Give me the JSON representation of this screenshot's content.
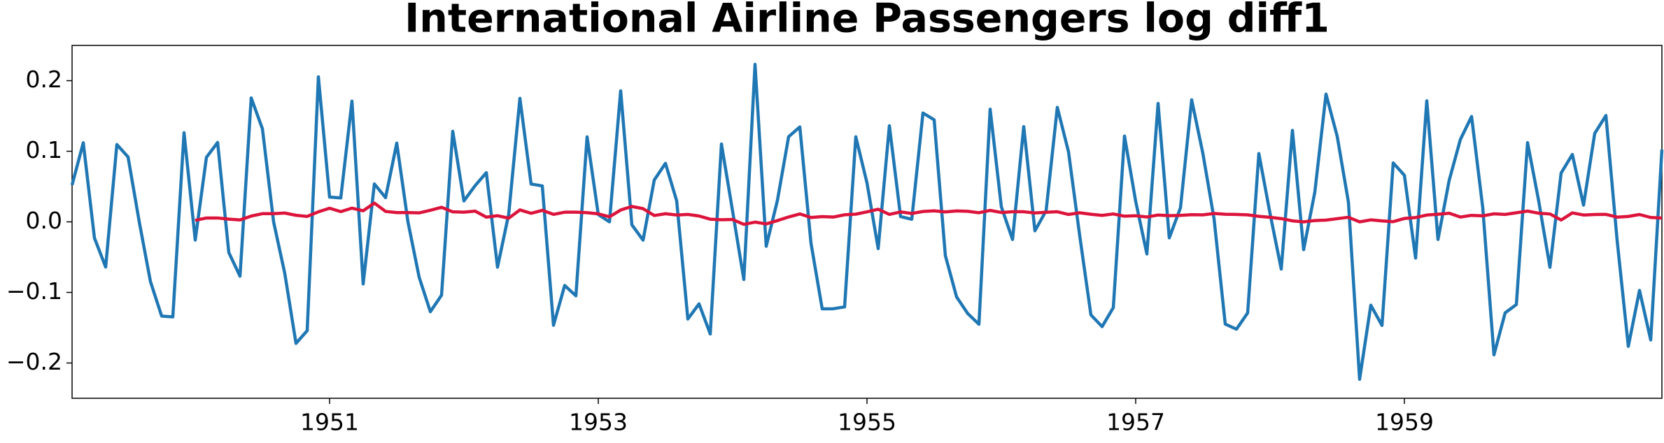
{
  "chart_data": {
    "type": "line",
    "title": "International Airline Passengers log diff1",
    "x": [
      "1949-02",
      "1949-03",
      "1949-04",
      "1949-05",
      "1949-06",
      "1949-07",
      "1949-08",
      "1949-09",
      "1949-10",
      "1949-11",
      "1949-12",
      "1950-01",
      "1950-02",
      "1950-03",
      "1950-04",
      "1950-05",
      "1950-06",
      "1950-07",
      "1950-08",
      "1950-09",
      "1950-10",
      "1950-11",
      "1950-12",
      "1951-01",
      "1951-02",
      "1951-03",
      "1951-04",
      "1951-05",
      "1951-06",
      "1951-07",
      "1951-08",
      "1951-09",
      "1951-10",
      "1951-11",
      "1951-12",
      "1952-01",
      "1952-02",
      "1952-03",
      "1952-04",
      "1952-05",
      "1952-06",
      "1952-07",
      "1952-08",
      "1952-09",
      "1952-10",
      "1952-11",
      "1952-12",
      "1953-01",
      "1953-02",
      "1953-03",
      "1953-04",
      "1953-05",
      "1953-06",
      "1953-07",
      "1953-08",
      "1953-09",
      "1953-10",
      "1953-11",
      "1953-12",
      "1954-01",
      "1954-02",
      "1954-03",
      "1954-04",
      "1954-05",
      "1954-06",
      "1954-07",
      "1954-08",
      "1954-09",
      "1954-10",
      "1954-11",
      "1954-12",
      "1955-01",
      "1955-02",
      "1955-03",
      "1955-04",
      "1955-05",
      "1955-06",
      "1955-07",
      "1955-08",
      "1955-09",
      "1955-10",
      "1955-11",
      "1955-12",
      "1956-01",
      "1956-02",
      "1956-03",
      "1956-04",
      "1956-05",
      "1956-06",
      "1956-07",
      "1956-08",
      "1956-09",
      "1956-10",
      "1956-11",
      "1956-12",
      "1957-01",
      "1957-02",
      "1957-03",
      "1957-04",
      "1957-05",
      "1957-06",
      "1957-07",
      "1957-08",
      "1957-09",
      "1957-10",
      "1957-11",
      "1957-12",
      "1958-01",
      "1958-02",
      "1958-03",
      "1958-04",
      "1958-05",
      "1958-06",
      "1958-07",
      "1958-08",
      "1958-09",
      "1958-10",
      "1958-11",
      "1958-12",
      "1959-01",
      "1959-02",
      "1959-03",
      "1959-04",
      "1959-05",
      "1959-06",
      "1959-07",
      "1959-08",
      "1959-09",
      "1959-10",
      "1959-11",
      "1959-12",
      "1960-01",
      "1960-02",
      "1960-03",
      "1960-04",
      "1960-05",
      "1960-06",
      "1960-07",
      "1960-08",
      "1960-09",
      "1960-10",
      "1960-11",
      "1960-12"
    ],
    "series": [
      {
        "color": "#1f77b4",
        "values": [
          0.0522,
          0.1121,
          -0.023,
          -0.064,
          0.1095,
          0.0919,
          0,
          -0.0846,
          -0.1335,
          -0.1347,
          0.1263,
          -0.0258,
          0.0914,
          0.1125,
          -0.0435,
          -0.077,
          0.1756,
          0.1319,
          0,
          -0.0732,
          -0.1722,
          -0.1542,
          0.2054,
          0.0351,
          0.0339,
          0.1711,
          -0.088,
          0.0537,
          0.0343,
          0.1115,
          0,
          -0.0784,
          -0.1273,
          -0.104,
          0.1284,
          0.0297,
          0.0513,
          0.0697,
          -0.0642,
          0.011,
          0.175,
          0.0536,
          0.0509,
          -0.1466,
          -0.0901,
          -0.1048,
          0.1204,
          0.0103,
          0,
          0.1857,
          -0.0042,
          -0.0259,
          0.0593,
          0.0829,
          0.0299,
          -0.1377,
          -0.1162,
          -0.1589,
          0.1103,
          0.0148,
          -0.0817,
          0.2231,
          -0.0346,
          0.0304,
          0.1206,
          0.1345,
          -0.0303,
          -0.1233,
          -0.1231,
          -0.1205,
          0.1205,
          0.0552,
          -0.0379,
          0.1362,
          0.0075,
          0.0037,
          0.1542,
          0.1446,
          -0.0478,
          -0.1063,
          -0.1299,
          -0.1451,
          0.1596,
          0.0214,
          -0.025,
          0.1349,
          -0.0127,
          0.0158,
          0.1622,
          0.0992,
          -0.0196,
          -0.1318,
          -0.1485,
          -0.1215,
          0.1215,
          0.029,
          -0.0455,
          0.1678,
          -0.0227,
          0.0199,
          0.1729,
          0.097,
          0.0043,
          -0.1449,
          -0.1521,
          -0.129,
          0.0968,
          0.0118,
          -0.0669,
          0.1296,
          -0.0394,
          0.0422,
          0.181,
          0.1211,
          0.0281,
          -0.2231,
          -0.1181,
          -0.1468,
          0.0835,
          0.066,
          -0.0513,
          0.1715,
          -0.0249,
          0.0588,
          0.1167,
          0.1493,
          0.0199,
          -0.1884,
          -0.1289,
          -0.1172,
          0.1122,
          0.0292,
          -0.0644,
          0.0692,
          0.0955,
          0.0236,
          0.1253,
          0.1507,
          -0.0261,
          -0.1764,
          -0.0971,
          -0.1673,
          0.1023
        ]
      },
      {
        "color": "#dc143c",
        "values": [
          null,
          null,
          null,
          null,
          null,
          null,
          null,
          null,
          null,
          null,
          null,
          0.0022,
          0.0055,
          0.0055,
          0.0038,
          0.0027,
          0.0082,
          0.0116,
          0.0116,
          0.0125,
          0.0093,
          0.0077,
          0.0142,
          0.0193,
          0.0145,
          0.0194,
          0.0157,
          0.0266,
          0.0148,
          0.0131,
          0.0131,
          0.0127,
          0.0164,
          0.0206,
          0.0142,
          0.0137,
          0.0152,
          0.0067,
          0.0087,
          0.0052,
          0.0169,
          0.0121,
          0.0163,
          0.0106,
          0.0137,
          0.0137,
          0.013,
          0.0114,
          0.0071,
          0.0168,
          0.0218,
          0.0187,
          0.009,
          0.0115,
          0.0097,
          0.0105,
          0.0083,
          0.0038,
          0.003,
          0.0033,
          -0.0035,
          -0.0004,
          -0.0029,
          0.0018,
          0.0069,
          0.0112,
          0.0062,
          0.0074,
          0.0068,
          0.01,
          0.0109,
          0.0142,
          0.0179,
          0.0106,
          0.0141,
          0.0119,
          0.0147,
          0.0156,
          0.0141,
          0.0155,
          0.015,
          0.0129,
          0.0162,
          0.0133,
          0.0144,
          0.0143,
          0.0126,
          0.0136,
          0.0143,
          0.0105,
          0.0129,
          0.0108,
          0.0092,
          0.0112,
          0.008,
          0.0086,
          0.0069,
          0.0097,
          0.0088,
          0.0092,
          0.0101,
          0.0099,
          0.0119,
          0.0108,
          0.0105,
          0.0099,
          0.0078,
          0.0064,
          0.0046,
          0.0014,
          0,
          0.0019,
          0.0025,
          0.0045,
          0.0065,
          0,
          0.0028,
          0.0014,
          0.0003,
          0.0048,
          0.0061,
          0.0096,
          0.0108,
          0.0122,
          0.0068,
          0.0092,
          0.0085,
          0.0114,
          0.0105,
          0.0129,
          0.0153,
          0.0122,
          0.0112,
          0.0026,
          0.0127,
          0.0097,
          0.0104,
          0.0106,
          0.0067,
          0.0077,
          0.0104,
          0.0062,
          0.0054
        ]
      }
    ],
    "xlim": [
      "1949-02",
      "1960-12"
    ],
    "xticks": [
      "1951",
      "1953",
      "1955",
      "1957",
      "1959"
    ],
    "ylim": [
      -0.25,
      0.25
    ],
    "yticks": [
      {
        "value": -0.2,
        "label": "−0.2"
      },
      {
        "value": -0.1,
        "label": "−0.1"
      },
      {
        "value": 0,
        "label": "0.0"
      },
      {
        "value": 0.1,
        "label": "0.1"
      },
      {
        "value": 0.2,
        "label": "0.2"
      }
    ],
    "grid": false
  }
}
